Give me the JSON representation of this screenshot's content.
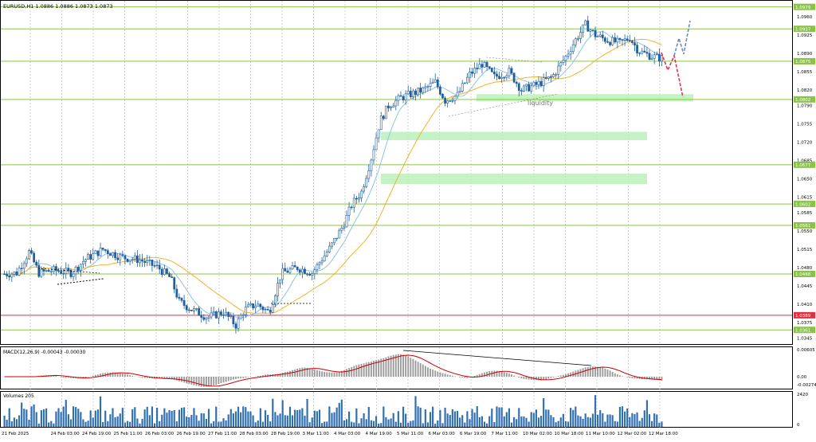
{
  "chart_title": "EURUSD,H1  1.0886 1.0886 1.0873 1.0873",
  "watermark": "liquidity",
  "colors": {
    "bull": "#1f5f9f",
    "bear": "#1f5f9f",
    "ma_fast": "#8ec3e6",
    "ma_slow": "#f0b429",
    "hline": "#9acd32",
    "hline_red": "#e03040",
    "zone": "#b8f0b8",
    "macd_signal": "#cc0000",
    "macd_hist": "#9a9a9a",
    "volume": "#2f6fb0",
    "label_bg": "#8bc34a"
  },
  "price_axis": {
    "ticks": [
      "1.0960",
      "1.0925",
      "1.0890",
      "1.0855",
      "1.0820",
      "1.0790",
      "1.0755",
      "1.0720",
      "1.0685",
      "1.0650",
      "1.0615",
      "1.0585",
      "1.0550",
      "1.0515",
      "1.0480",
      "1.0445",
      "1.0410",
      "1.0375",
      "1.0345"
    ],
    "highlight_labels": [
      {
        "text": "1.0979",
        "color": "#8bc34a"
      },
      {
        "text": "1.0937",
        "color": "#8bc34a"
      },
      {
        "text": "1.0875",
        "color": "#8bc34a"
      },
      {
        "text": "1.0802",
        "color": "#8bc34a"
      },
      {
        "text": "1.0677",
        "color": "#8bc34a"
      },
      {
        "text": "1.0602",
        "color": "#8bc34a"
      },
      {
        "text": "1.0561",
        "color": "#8bc34a"
      },
      {
        "text": "1.0468",
        "color": "#8bc34a"
      },
      {
        "text": "1.0389",
        "color": "#e03040"
      },
      {
        "text": "1.0361",
        "color": "#8bc34a"
      }
    ]
  },
  "time_axis": [
    "21 Feb 2025",
    "24 Feb 03:00",
    "24 Feb 19:00",
    "25 Feb 11:00",
    "26 Feb 03:00",
    "26 Feb 19:00",
    "27 Feb 11:00",
    "28 Feb 03:00",
    "28 Feb 19:00",
    "3 Mar 11:00",
    "4 Mar 03:00",
    "4 Mar 19:00",
    "5 Mar 11:00",
    "6 Mar 03:00",
    "6 Mar 19:00",
    "7 Mar 11:00",
    "10 Mar 02:00",
    "10 Mar 18:00",
    "11 Mar 10:00",
    "12 Mar 02:00",
    "12 Mar 18:00"
  ],
  "macd": {
    "label": "MACD(12,26,9) -0.00043 -0.00030",
    "ticks": [
      "0.00605",
      "0.00",
      "-0.00274"
    ]
  },
  "volumes": {
    "label": "Volumes 205",
    "ticks": [
      "2420",
      "0"
    ]
  }
}
